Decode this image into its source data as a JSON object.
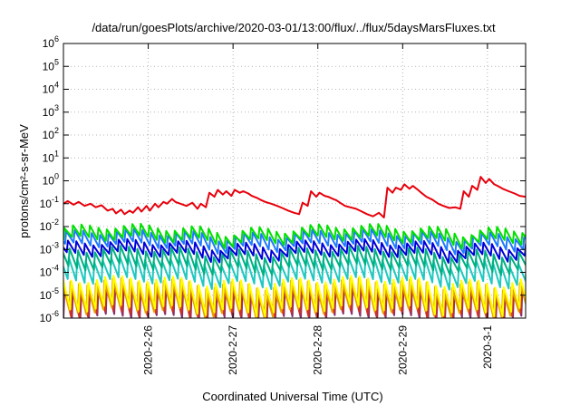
{
  "chart_data": {
    "type": "line",
    "title": "/data/run/goesPlots/archive/2020-03-01/13:00/flux/../flux/5daysMarsFluxes.txt",
    "xlabel": "Coordinated Universal Time (UTC)",
    "ylabel": "protons/cm²-s-sr-MeV",
    "yscale": "log",
    "ylim": [
      1e-06,
      1000000.0
    ],
    "xlim": [
      0,
      5.45
    ],
    "grid": true,
    "x_ticks": [
      {
        "label": "2020-2-26",
        "x": 1.0
      },
      {
        "label": "2020-2-27",
        "x": 2.0
      },
      {
        "label": "2020-2-28",
        "x": 3.0
      },
      {
        "label": "2020-2-29",
        "x": 4.0
      },
      {
        "label": "2020-3-1",
        "x": 5.0
      }
    ],
    "y_ticks": [
      {
        "base": "10",
        "exp": "-6",
        "value": 1e-06
      },
      {
        "base": "10",
        "exp": "-5",
        "value": 1e-05
      },
      {
        "base": "10",
        "exp": "-4",
        "value": 0.0001
      },
      {
        "base": "10",
        "exp": "-3",
        "value": 0.001
      },
      {
        "base": "10",
        "exp": "-2",
        "value": 0.01
      },
      {
        "base": "10",
        "exp": "-1",
        "value": 0.1
      },
      {
        "base": "10",
        "exp": "0",
        "value": 1
      },
      {
        "base": "10",
        "exp": "1",
        "value": 10
      },
      {
        "base": "10",
        "exp": "2",
        "value": 100
      },
      {
        "base": "10",
        "exp": "3",
        "value": 1000
      },
      {
        "base": "10",
        "exp": "4",
        "value": 10000
      },
      {
        "base": "10",
        "exp": "5",
        "value": 100000
      },
      {
        "base": "10",
        "exp": "6",
        "value": 1000000
      }
    ],
    "series": [
      {
        "color": "#e8000b",
        "x": [
          0.0,
          0.05,
          0.12,
          0.18,
          0.25,
          0.32,
          0.38,
          0.45,
          0.52,
          0.58,
          0.62,
          0.68,
          0.72,
          0.78,
          0.82,
          0.88,
          0.92,
          0.98,
          1.02,
          1.08,
          1.12,
          1.18,
          1.22,
          1.28,
          1.32,
          1.38,
          1.45,
          1.52,
          1.58,
          1.62,
          1.68,
          1.72,
          1.78,
          1.82,
          1.88,
          1.92,
          1.98,
          2.02,
          2.08,
          2.12,
          2.18,
          2.22,
          2.28,
          2.32,
          2.38,
          2.45,
          2.52,
          2.58,
          2.65,
          2.72,
          2.78,
          2.82,
          2.88,
          2.92,
          2.98,
          3.02,
          3.08,
          3.12,
          3.18,
          3.22,
          3.28,
          3.32,
          3.38,
          3.45,
          3.52,
          3.58,
          3.65,
          3.72,
          3.78,
          3.82,
          3.88,
          3.92,
          3.98,
          4.02,
          4.08,
          4.12,
          4.18,
          4.22,
          4.28,
          4.35,
          4.42,
          4.48,
          4.55,
          4.62,
          4.68,
          4.72,
          4.78,
          4.82,
          4.88,
          4.92,
          4.98,
          5.02,
          5.08,
          5.12,
          5.18,
          5.25,
          5.32,
          5.38,
          5.45
        ],
        "y": [
          0.1,
          0.13,
          0.09,
          0.12,
          0.08,
          0.1,
          0.07,
          0.085,
          0.05,
          0.06,
          0.038,
          0.055,
          0.035,
          0.05,
          0.04,
          0.07,
          0.045,
          0.08,
          0.05,
          0.1,
          0.07,
          0.12,
          0.1,
          0.16,
          0.12,
          0.1,
          0.08,
          0.11,
          0.06,
          0.1,
          0.07,
          0.3,
          0.2,
          0.4,
          0.25,
          0.35,
          0.22,
          0.4,
          0.3,
          0.35,
          0.28,
          0.22,
          0.18,
          0.15,
          0.12,
          0.1,
          0.08,
          0.065,
          0.05,
          0.04,
          0.035,
          0.11,
          0.08,
          0.35,
          0.2,
          0.3,
          0.22,
          0.2,
          0.16,
          0.14,
          0.1,
          0.08,
          0.07,
          0.06,
          0.045,
          0.035,
          0.028,
          0.04,
          0.025,
          0.5,
          0.3,
          0.5,
          0.4,
          0.7,
          0.45,
          0.6,
          0.4,
          0.3,
          0.2,
          0.15,
          0.1,
          0.08,
          0.065,
          0.07,
          0.06,
          0.35,
          0.2,
          0.6,
          0.4,
          1.5,
          0.8,
          1.2,
          0.7,
          0.6,
          0.45,
          0.35,
          0.28,
          0.22,
          0.2
        ]
      },
      {
        "color": "#00e000",
        "base": 0.0085,
        "drop": 3.2,
        "offset": 0.0
      },
      {
        "color": "#1e7bff",
        "base": 0.005,
        "drop": 3.5,
        "offset": 0.02
      },
      {
        "color": "#0000d8",
        "base": 0.0018,
        "drop": 3.2,
        "offset": 0.04
      },
      {
        "color": "#00b080",
        "base": 0.0009,
        "drop": 6.0,
        "offset": 0.06
      },
      {
        "color": "#20c8c0",
        "base": 0.00035,
        "drop": 9.0,
        "offset": 0.05
      },
      {
        "color": "#ffff00",
        "base": 4.5e-05,
        "drop": 18.0,
        "offset": 0.08
      },
      {
        "color": "#e8a000",
        "base": 3.5e-05,
        "drop": 18.0,
        "offset": 0.07
      },
      {
        "color": "#d03020",
        "base": 2.5e-05,
        "drop": 18.0,
        "offset": 0.09
      },
      {
        "color": "#8a2e6e",
        "base": 1.8e-05,
        "drop": 18.0,
        "offset": 0.1
      }
    ],
    "sawtooth_period": 0.1
  }
}
